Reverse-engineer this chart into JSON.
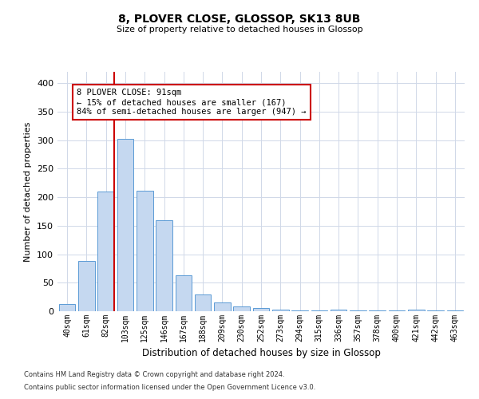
{
  "title": "8, PLOVER CLOSE, GLOSSOP, SK13 8UB",
  "subtitle": "Size of property relative to detached houses in Glossop",
  "xlabel": "Distribution of detached houses by size in Glossop",
  "ylabel": "Number of detached properties",
  "categories": [
    "40sqm",
    "61sqm",
    "82sqm",
    "103sqm",
    "125sqm",
    "146sqm",
    "167sqm",
    "188sqm",
    "209sqm",
    "230sqm",
    "252sqm",
    "273sqm",
    "294sqm",
    "315sqm",
    "336sqm",
    "357sqm",
    "378sqm",
    "400sqm",
    "421sqm",
    "442sqm",
    "463sqm"
  ],
  "values": [
    13,
    88,
    210,
    303,
    212,
    160,
    63,
    30,
    15,
    8,
    5,
    3,
    2,
    2,
    3,
    2,
    2,
    2,
    3,
    2,
    2
  ],
  "bar_color": "#c5d8f0",
  "bar_edge_color": "#5b9bd5",
  "marker_index": 2,
  "marker_color": "#cc0000",
  "ylim": [
    0,
    420
  ],
  "yticks": [
    0,
    50,
    100,
    150,
    200,
    250,
    300,
    350,
    400
  ],
  "annotation_text": "8 PLOVER CLOSE: 91sqm\n← 15% of detached houses are smaller (167)\n84% of semi-detached houses are larger (947) →",
  "annotation_box_color": "#ffffff",
  "annotation_box_edge": "#cc0000",
  "footer1": "Contains HM Land Registry data © Crown copyright and database right 2024.",
  "footer2": "Contains public sector information licensed under the Open Government Licence v3.0.",
  "background_color": "#ffffff",
  "grid_color": "#d0d8e8"
}
